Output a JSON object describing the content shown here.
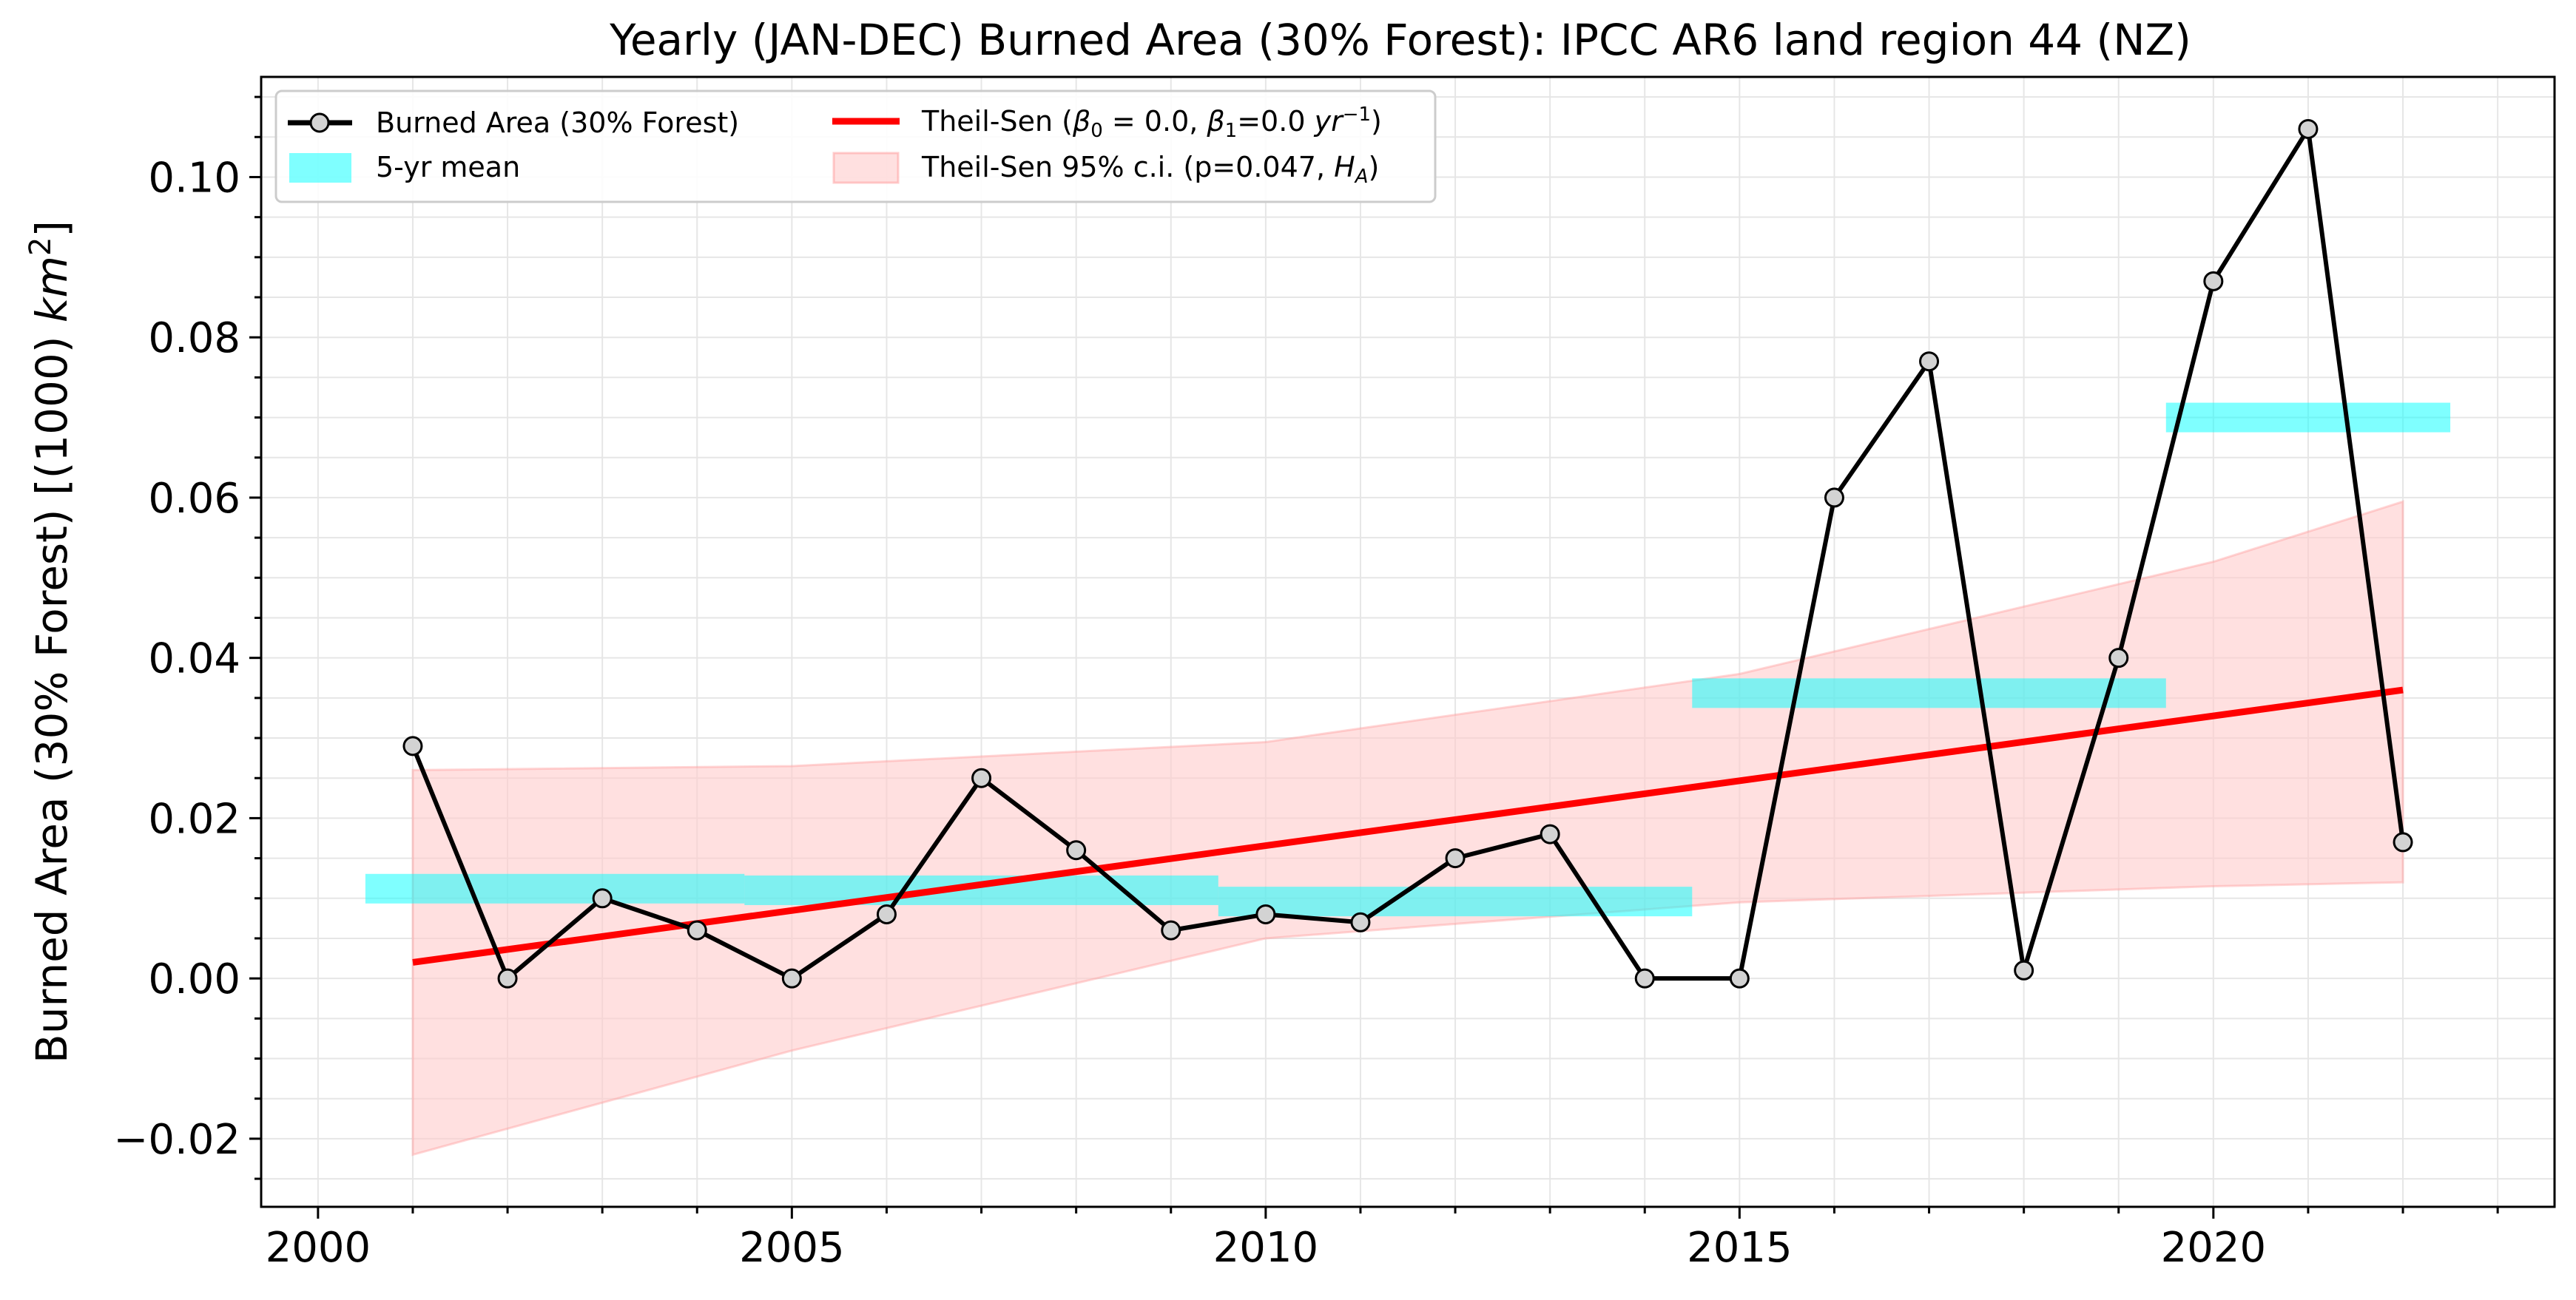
{
  "chart_data": {
    "type": "line",
    "title": "Yearly (JAN-DEC) Burned Area (30% Forest): IPCC AR6 land region 44 (NZ)",
    "ylabel_main": "Burned Area (30% Forest) [(1000) ",
    "ylabel_unit": "km",
    "ylabel_exp": "2",
    "ylabel_end": "]",
    "xlim": [
      1999.4,
      2023.6
    ],
    "ylim": [
      -0.0285,
      0.1125
    ],
    "xticks": [
      2000,
      2005,
      2010,
      2015,
      2020
    ],
    "xtick_labels": [
      "2000",
      "2005",
      "2010",
      "2015",
      "2020"
    ],
    "yticks": [
      -0.02,
      0.0,
      0.02,
      0.04,
      0.06,
      0.08,
      0.1
    ],
    "ytick_labels": [
      "−0.02",
      "0.00",
      "0.02",
      "0.04",
      "0.06",
      "0.08",
      "0.10"
    ],
    "grid": true,
    "legend_position": "top-left",
    "series": [
      {
        "name": "Burned Area (30% Forest)",
        "color": "#000000",
        "marker_fill": "#d3d3d3",
        "x": [
          2001,
          2002,
          2003,
          2004,
          2005,
          2006,
          2007,
          2008,
          2009,
          2010,
          2011,
          2012,
          2013,
          2014,
          2015,
          2016,
          2017,
          2018,
          2019,
          2020,
          2021,
          2022
        ],
        "y": [
          0.029,
          0.0,
          0.01,
          0.006,
          0.0,
          0.008,
          0.025,
          0.016,
          0.006,
          0.008,
          0.007,
          0.015,
          0.018,
          0.0,
          0.0,
          0.06,
          0.077,
          0.001,
          0.04,
          0.087,
          0.106,
          0.017
        ]
      }
    ],
    "five_year_mean": {
      "name": "5-yr mean",
      "color": "#00ffff",
      "segments": [
        {
          "x0": 2000.5,
          "x1": 2004.5,
          "y": 0.0112
        },
        {
          "x0": 2004.5,
          "x1": 2009.5,
          "y": 0.011
        },
        {
          "x0": 2009.5,
          "x1": 2014.5,
          "y": 0.0096
        },
        {
          "x0": 2014.5,
          "x1": 2019.5,
          "y": 0.0356
        },
        {
          "x0": 2019.5,
          "x1": 2022.5,
          "y": 0.07
        }
      ]
    },
    "theil_sen": {
      "name_prefix": "Theil-Sen (",
      "beta0_label": "β",
      "beta0_sub": "0",
      "beta0_value": " = 0.0, ",
      "beta1_label": "β",
      "beta1_sub": "1",
      "beta1_value": "=0.0 ",
      "unit": "yr",
      "unit_exp": "−1",
      "name_suffix": ")",
      "color": "#ff0000",
      "x": [
        2001,
        2022
      ],
      "y": [
        0.002,
        0.036
      ]
    },
    "confidence_interval": {
      "name_prefix": "Theil-Sen 95% c.i. (p=0.047, ",
      "ha_label": "H",
      "ha_sub": "A",
      "name_suffix": ")",
      "color": "#ffcccc",
      "x": [
        2001,
        2005,
        2010,
        2015,
        2020,
        2022
      ],
      "upper": [
        0.026,
        0.0265,
        0.0295,
        0.038,
        0.052,
        0.0595
      ],
      "lower": [
        -0.022,
        -0.009,
        0.005,
        0.0095,
        0.0115,
        0.012
      ]
    }
  }
}
